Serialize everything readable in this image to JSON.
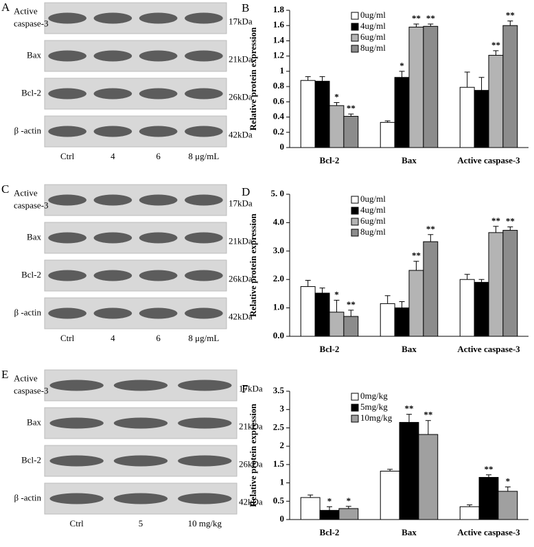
{
  "blots": [
    {
      "panel": "A",
      "rows": [
        {
          "label": [
            "Active",
            "caspase-3"
          ],
          "kda": "17kDa"
        },
        {
          "label": [
            "Bax"
          ],
          "kda": "21kDa"
        },
        {
          "label": [
            "Bcl-2"
          ],
          "kda": "26kDa"
        },
        {
          "label": [
            "β -actin"
          ],
          "kda": "42kDa"
        }
      ],
      "lanes": [
        "Ctrl",
        "4",
        "6",
        "8 μg/mL"
      ]
    },
    {
      "panel": "C",
      "rows": [
        {
          "label": [
            "Active",
            "caspase-3"
          ],
          "kda": "17kDa"
        },
        {
          "label": [
            "Bax"
          ],
          "kda": "21kDa"
        },
        {
          "label": [
            "Bcl-2"
          ],
          "kda": "26kDa"
        },
        {
          "label": [
            "β -actin"
          ],
          "kda": "42kDa"
        }
      ],
      "lanes": [
        "Ctrl",
        "4",
        "6",
        "8 μg/mL"
      ]
    },
    {
      "panel": "E",
      "rows": [
        {
          "label": [
            "Active",
            "caspase-3"
          ],
          "kda": "17kDa"
        },
        {
          "label": [
            "Bax"
          ],
          "kda": "21kDa"
        },
        {
          "label": [
            "Bcl-2"
          ],
          "kda": "26kDa"
        },
        {
          "label": [
            "β -actin"
          ],
          "kda": "42kDa"
        }
      ],
      "lanes": [
        "Ctrl",
        "5",
        "10 mg/kg"
      ]
    }
  ],
  "chart_data": [
    {
      "type": "bar",
      "panel": "B",
      "y_label": "Relative protein expression",
      "categories": [
        "Bcl-2",
        "Bax",
        "Active caspase-3"
      ],
      "ylim": [
        0,
        1.8
      ],
      "yticks": [
        0,
        0.2,
        0.4,
        0.6,
        0.8,
        1,
        1.2,
        1.4,
        1.6,
        1.8
      ],
      "legend": "upper left",
      "series": [
        {
          "name": "0ug/ml",
          "color": "#ffffff",
          "values": [
            0.88,
            0.33,
            0.79
          ],
          "errors": [
            0.05,
            0.02,
            0.2
          ],
          "significance": [
            null,
            null,
            null
          ]
        },
        {
          "name": "4ug/ml",
          "color": "#000000",
          "values": [
            0.87,
            0.92,
            0.75
          ],
          "errors": [
            0.06,
            0.08,
            0.17
          ],
          "significance": [
            null,
            "*",
            null
          ]
        },
        {
          "name": "6ug/ml",
          "color": "#b4b4b4",
          "values": [
            0.55,
            1.58,
            1.21
          ],
          "errors": [
            0.04,
            0.04,
            0.06
          ],
          "significance": [
            "*",
            "**",
            "**"
          ]
        },
        {
          "name": "8ug/ml",
          "color": "#8c8c8c",
          "values": [
            0.41,
            1.59,
            1.6
          ],
          "errors": [
            0.03,
            0.03,
            0.06
          ],
          "significance": [
            "**",
            "**",
            "**"
          ]
        }
      ]
    },
    {
      "type": "bar",
      "panel": "D",
      "y_label": "Relative protein expression",
      "categories": [
        "Bcl-2",
        "Bax",
        "Active caspase-3"
      ],
      "ylim": [
        0,
        5
      ],
      "yticks": [
        {
          "value": 0,
          "label": "0.0"
        },
        {
          "value": 1,
          "label": "1.0"
        },
        {
          "value": 2,
          "label": "2.0"
        },
        {
          "value": 3,
          "label": "3.0"
        },
        {
          "value": 4,
          "label": "4.0"
        },
        {
          "value": 5,
          "label": "5. 0"
        }
      ],
      "legend": "upper left",
      "series": [
        {
          "name": "0ug/ml",
          "color": "#ffffff",
          "values": [
            1.75,
            1.15,
            2.0
          ],
          "errors": [
            0.22,
            0.28,
            0.18
          ],
          "significance": [
            null,
            null,
            null
          ]
        },
        {
          "name": "4ug/ml",
          "color": "#000000",
          "values": [
            1.52,
            1.0,
            1.9
          ],
          "errors": [
            0.18,
            0.22,
            0.1
          ],
          "significance": [
            null,
            null,
            null
          ]
        },
        {
          "name": "6ug/ml",
          "color": "#b4b4b4",
          "values": [
            0.85,
            2.32,
            3.65
          ],
          "errors": [
            0.42,
            0.32,
            0.22
          ],
          "significance": [
            "*",
            "**",
            "**"
          ]
        },
        {
          "name": "8ug/ml",
          "color": "#8c8c8c",
          "values": [
            0.7,
            3.33,
            3.73
          ],
          "errors": [
            0.22,
            0.25,
            0.12
          ],
          "significance": [
            "**",
            "**",
            "**"
          ]
        }
      ]
    },
    {
      "type": "bar",
      "panel": "F",
      "y_label": "Relative protein expression",
      "categories": [
        "Bcl-2",
        "Bax",
        "Active caspase-3"
      ],
      "ylim": [
        0,
        3.5
      ],
      "yticks": [
        0,
        0.5,
        1,
        1.5,
        2,
        2.5,
        3,
        3.5
      ],
      "legend": "upper left",
      "series": [
        {
          "name": "0mg/kg",
          "color": "#ffffff",
          "values": [
            0.6,
            1.32,
            0.35
          ],
          "errors": [
            0.07,
            0.05,
            0.05
          ],
          "significance": [
            null,
            null,
            null
          ]
        },
        {
          "name": "5mg/kg",
          "color": "#000000",
          "values": [
            0.25,
            2.65,
            1.15
          ],
          "errors": [
            0.1,
            0.22,
            0.07
          ],
          "significance": [
            "*",
            "**",
            "**"
          ]
        },
        {
          "name": "10mg/kg",
          "color": "#a0a0a0",
          "values": [
            0.3,
            2.32,
            0.77
          ],
          "errors": [
            0.06,
            0.38,
            0.12
          ],
          "significance": [
            "*",
            "**",
            "*"
          ]
        }
      ]
    }
  ]
}
